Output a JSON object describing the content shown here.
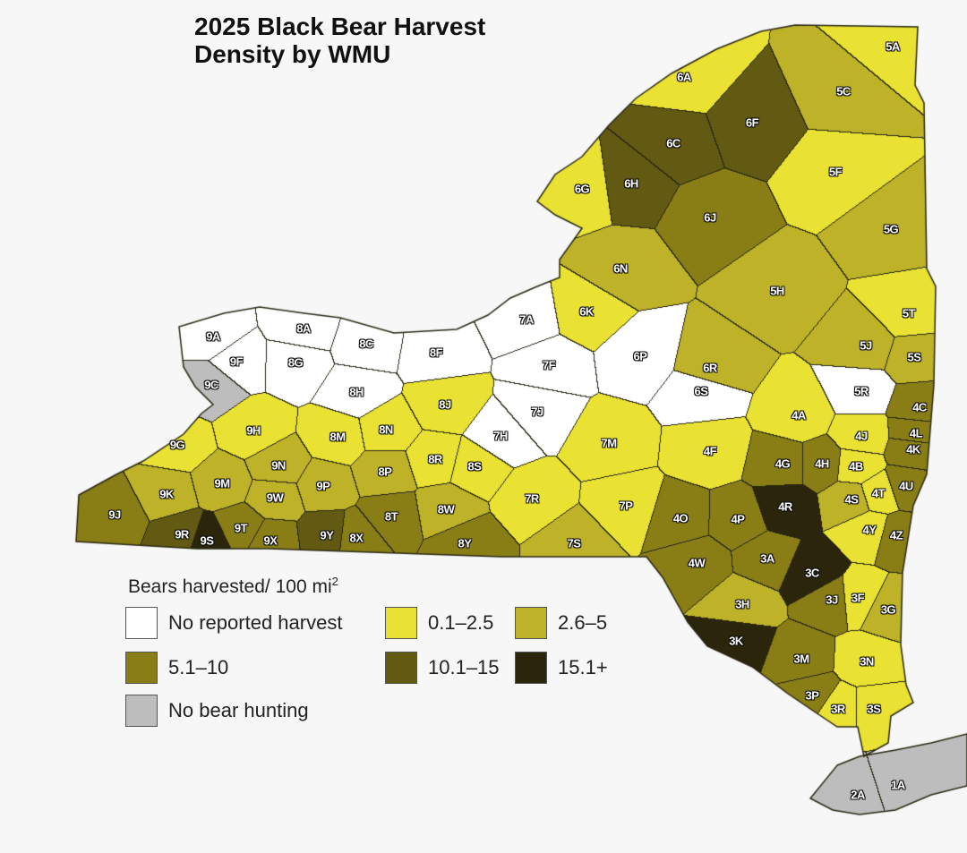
{
  "title": {
    "line1": "2025 Black Bear Harvest",
    "line2": "Density by WMU"
  },
  "legend": {
    "title": "Bears harvested/ 100 mi",
    "title_sup": "2",
    "items": [
      {
        "key": "none",
        "label": "No reported harvest",
        "color": "#ffffff"
      },
      {
        "key": "c1",
        "label": "0.1–2.5",
        "color": "#e9e232"
      },
      {
        "key": "c2",
        "label": "2.6–5",
        "color": "#bdb228"
      },
      {
        "key": "c3",
        "label": "5.1–10",
        "color": "#897e15"
      },
      {
        "key": "c4",
        "label": "10.1–15",
        "color": "#625a12"
      },
      {
        "key": "c5",
        "label": "15.1+",
        "color": "#2a250b"
      },
      {
        "key": "nohunt",
        "label": "No bear hunting",
        "color": "#bdbdbd"
      }
    ]
  },
  "wmus": [
    {
      "id": "5A",
      "cls": "c1"
    },
    {
      "id": "6A",
      "cls": "c1"
    },
    {
      "id": "5C",
      "cls": "c2"
    },
    {
      "id": "6F",
      "cls": "c4"
    },
    {
      "id": "6C",
      "cls": "c4"
    },
    {
      "id": "6H",
      "cls": "c4"
    },
    {
      "id": "6G",
      "cls": "c1"
    },
    {
      "id": "5F",
      "cls": "c1"
    },
    {
      "id": "6J",
      "cls": "c3"
    },
    {
      "id": "5G",
      "cls": "c2"
    },
    {
      "id": "6N",
      "cls": "c2"
    },
    {
      "id": "5H",
      "cls": "c2"
    },
    {
      "id": "6K",
      "cls": "c1"
    },
    {
      "id": "5T",
      "cls": "c1"
    },
    {
      "id": "7A",
      "cls": "none"
    },
    {
      "id": "8A",
      "cls": "none"
    },
    {
      "id": "9A",
      "cls": "none"
    },
    {
      "id": "8C",
      "cls": "none"
    },
    {
      "id": "8F",
      "cls": "none"
    },
    {
      "id": "5J",
      "cls": "c2"
    },
    {
      "id": "6P",
      "cls": "none"
    },
    {
      "id": "9F",
      "cls": "none"
    },
    {
      "id": "8G",
      "cls": "none"
    },
    {
      "id": "7F",
      "cls": "none"
    },
    {
      "id": "6R",
      "cls": "c2"
    },
    {
      "id": "5S",
      "cls": "c2"
    },
    {
      "id": "9C",
      "cls": "nohunt"
    },
    {
      "id": "8H",
      "cls": "none"
    },
    {
      "id": "6S",
      "cls": "none"
    },
    {
      "id": "5R",
      "cls": "none"
    },
    {
      "id": "8J",
      "cls": "c1"
    },
    {
      "id": "7J",
      "cls": "none"
    },
    {
      "id": "4C",
      "cls": "c3"
    },
    {
      "id": "4A",
      "cls": "c1"
    },
    {
      "id": "9H",
      "cls": "c1"
    },
    {
      "id": "8M",
      "cls": "c1"
    },
    {
      "id": "8N",
      "cls": "c1"
    },
    {
      "id": "7H",
      "cls": "none"
    },
    {
      "id": "4J",
      "cls": "c1"
    },
    {
      "id": "4L",
      "cls": "c3"
    },
    {
      "id": "9G",
      "cls": "c1"
    },
    {
      "id": "7M",
      "cls": "c1"
    },
    {
      "id": "4F",
      "cls": "c1"
    },
    {
      "id": "4K",
      "cls": "c3"
    },
    {
      "id": "8R",
      "cls": "c1"
    },
    {
      "id": "8S",
      "cls": "c1"
    },
    {
      "id": "4G",
      "cls": "c3"
    },
    {
      "id": "4H",
      "cls": "c3"
    },
    {
      "id": "4B",
      "cls": "c1"
    },
    {
      "id": "9N",
      "cls": "c2"
    },
    {
      "id": "8P",
      "cls": "c2"
    },
    {
      "id": "9M",
      "cls": "c2"
    },
    {
      "id": "4U",
      "cls": "c3"
    },
    {
      "id": "9P",
      "cls": "c2"
    },
    {
      "id": "9W",
      "cls": "c2"
    },
    {
      "id": "9K",
      "cls": "c2"
    },
    {
      "id": "4S",
      "cls": "c2"
    },
    {
      "id": "4T",
      "cls": "c1"
    },
    {
      "id": "7R",
      "cls": "c1"
    },
    {
      "id": "8W",
      "cls": "c2"
    },
    {
      "id": "7P",
      "cls": "c1"
    },
    {
      "id": "8T",
      "cls": "c3"
    },
    {
      "id": "4O",
      "cls": "c3"
    },
    {
      "id": "4P",
      "cls": "c3"
    },
    {
      "id": "4R",
      "cls": "c5"
    },
    {
      "id": "9J",
      "cls": "c3"
    },
    {
      "id": "9T",
      "cls": "c3"
    },
    {
      "id": "9R",
      "cls": "c4"
    },
    {
      "id": "9S",
      "cls": "c5"
    },
    {
      "id": "9X",
      "cls": "c3"
    },
    {
      "id": "9Y",
      "cls": "c4"
    },
    {
      "id": "8X",
      "cls": "c3"
    },
    {
      "id": "4Y",
      "cls": "c1"
    },
    {
      "id": "4Z",
      "cls": "c3"
    },
    {
      "id": "8Y",
      "cls": "c3"
    },
    {
      "id": "7S",
      "cls": "c2"
    },
    {
      "id": "4W",
      "cls": "c3"
    },
    {
      "id": "3A",
      "cls": "c3"
    },
    {
      "id": "3C",
      "cls": "c5"
    },
    {
      "id": "3H",
      "cls": "c2"
    },
    {
      "id": "3J",
      "cls": "c3"
    },
    {
      "id": "3F",
      "cls": "c1"
    },
    {
      "id": "3G",
      "cls": "c2"
    },
    {
      "id": "3K",
      "cls": "c5"
    },
    {
      "id": "3M",
      "cls": "c3"
    },
    {
      "id": "3N",
      "cls": "c1"
    },
    {
      "id": "3P",
      "cls": "c3"
    },
    {
      "id": "3R",
      "cls": "c1"
    },
    {
      "id": "3S",
      "cls": "c1"
    },
    {
      "id": "2A",
      "cls": "nohunt"
    },
    {
      "id": "1A",
      "cls": "nohunt"
    }
  ]
}
